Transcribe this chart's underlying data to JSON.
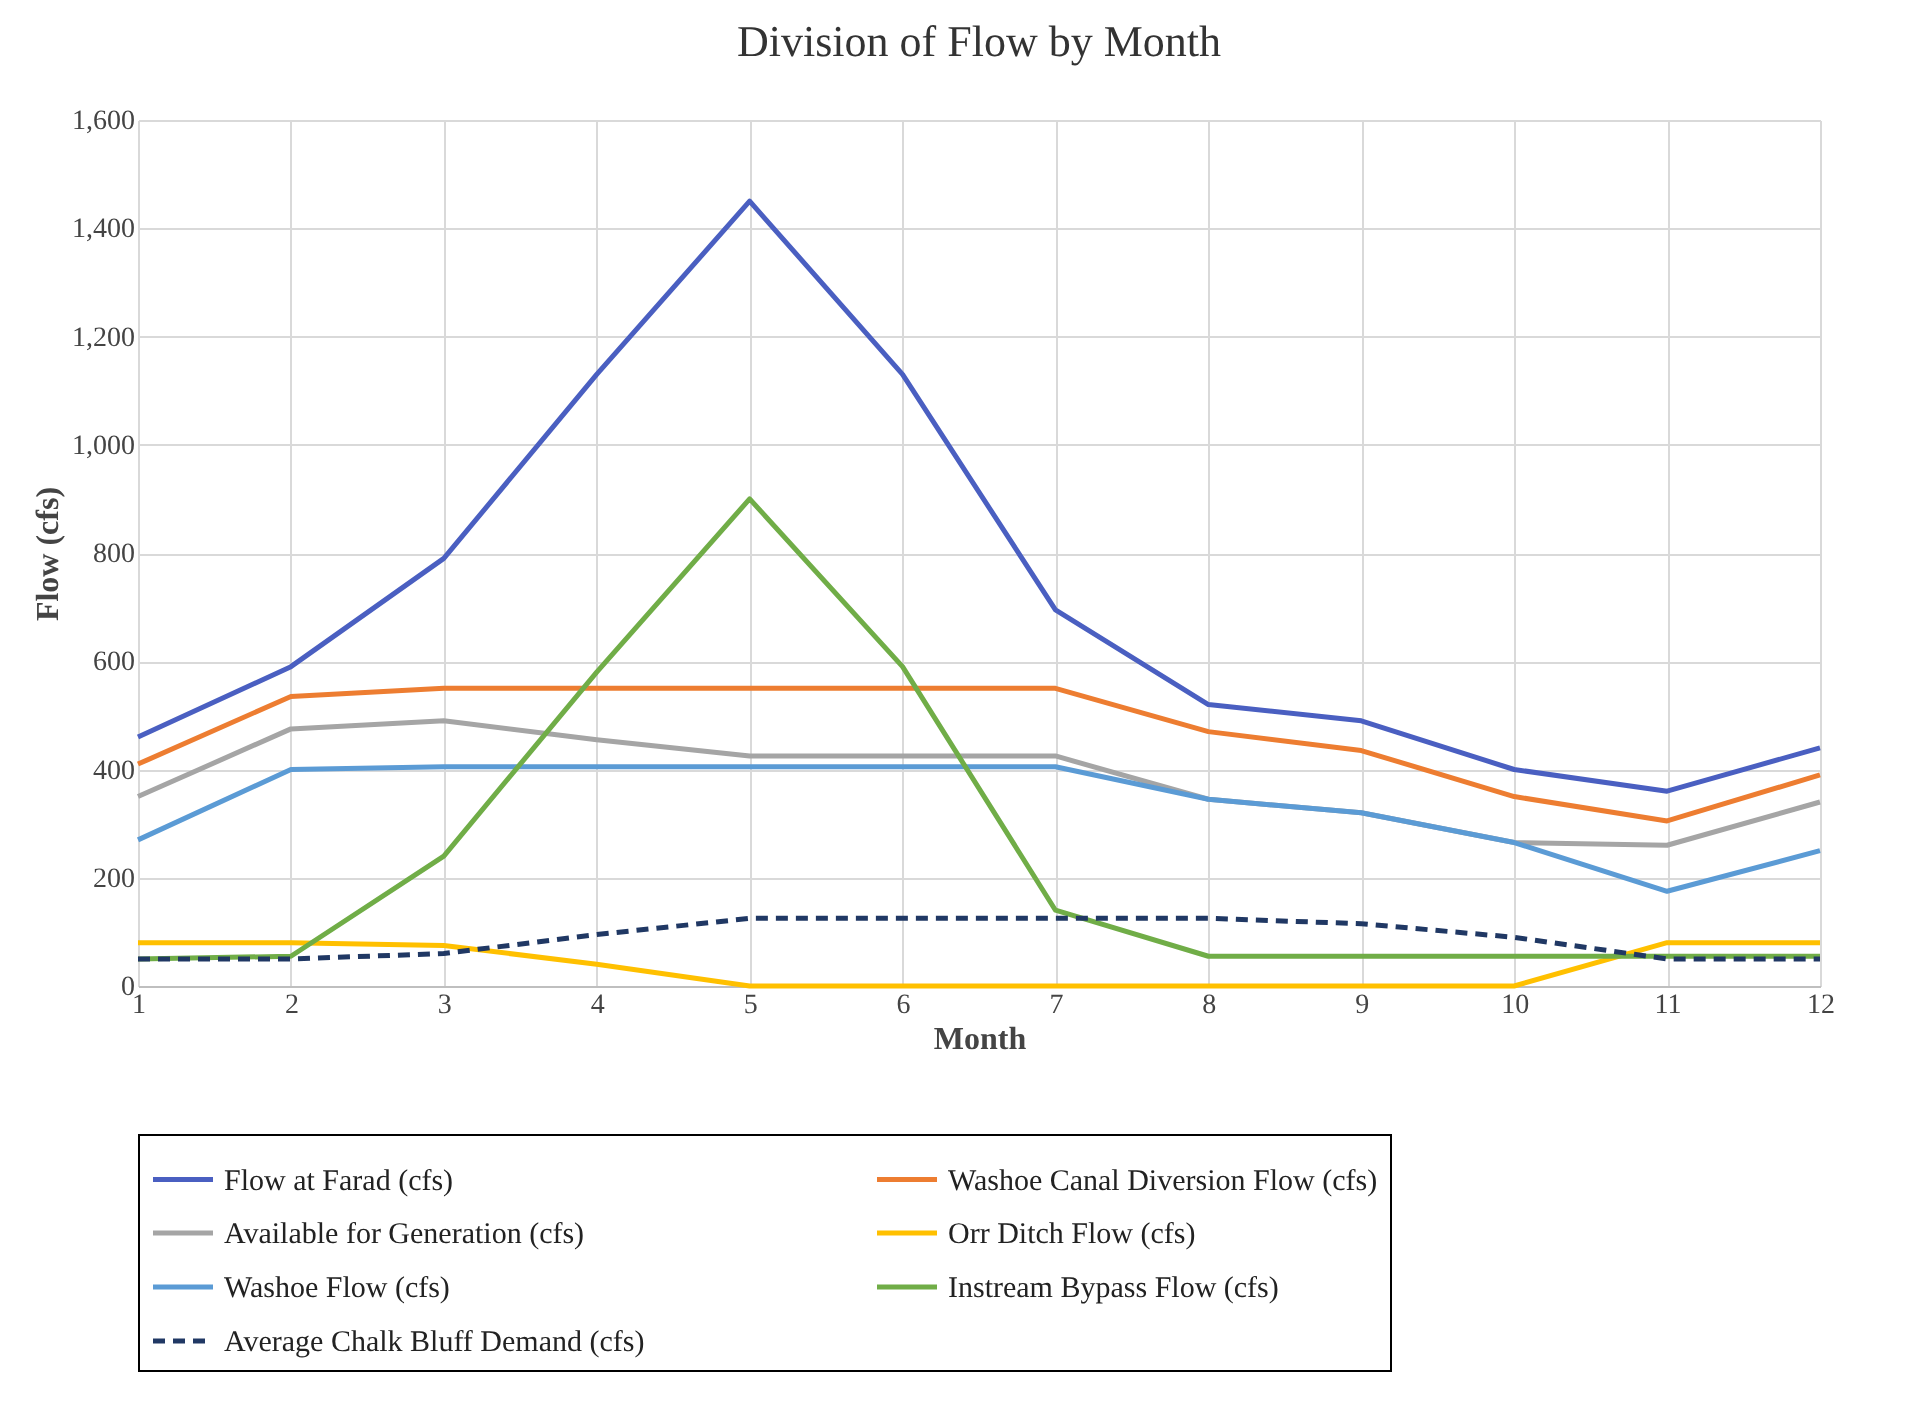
{
  "chart_data": {
    "type": "line",
    "title": "Division of Flow by Month",
    "xlabel": "Month",
    "ylabel": "Flow (cfs)",
    "x": [
      1,
      2,
      3,
      4,
      5,
      6,
      7,
      8,
      9,
      10,
      11,
      12
    ],
    "xlim": [
      1,
      12
    ],
    "xticks": [
      1,
      2,
      3,
      4,
      5,
      6,
      7,
      8,
      9,
      10,
      11,
      12
    ],
    "ylim": [
      0,
      1600
    ],
    "yticks": [
      0,
      {
        "value": 200,
        "label": "200"
      },
      {
        "value": 400,
        "label": "400"
      },
      {
        "value": 600,
        "label": "600"
      },
      {
        "value": 800,
        "label": "800"
      },
      {
        "value": 1000,
        "label": "1,000"
      },
      {
        "value": 1200,
        "label": "1,200"
      },
      {
        "value": 1400,
        "label": "1,400"
      },
      {
        "value": 1600,
        "label": "1,600"
      }
    ],
    "grid": true,
    "legend": "bottom",
    "marker": "none",
    "series": [
      {
        "name": "Flow at Farad (cfs)",
        "color": "#4a5fc1",
        "values": [
          460,
          590,
          790,
          1130,
          1450,
          1130,
          695,
          520,
          490,
          400,
          360,
          440
        ]
      },
      {
        "name": "Washoe Canal Diversion Flow (cfs)",
        "color": "#ed7d31",
        "values": [
          410,
          535,
          550,
          550,
          550,
          550,
          550,
          470,
          435,
          350,
          305,
          390
        ]
      },
      {
        "name": "Available for Generation (cfs)",
        "color": "#a5a5a5",
        "values": [
          350,
          475,
          490,
          455,
          425,
          425,
          425,
          345,
          320,
          265,
          260,
          340
        ]
      },
      {
        "name": "Orr Ditch Flow (cfs)",
        "color": "#ffc000",
        "values": [
          80,
          80,
          75,
          40,
          0,
          0,
          0,
          0,
          0,
          0,
          80,
          80
        ]
      },
      {
        "name": "Washoe Flow (cfs)",
        "color": "#5b9bd5",
        "values": [
          270,
          400,
          405,
          405,
          405,
          405,
          405,
          345,
          320,
          265,
          175,
          250
        ]
      },
      {
        "name": "Instream Bypass Flow (cfs)",
        "color": "#70ad47",
        "values": [
          50,
          55,
          240,
          580,
          900,
          590,
          140,
          55,
          55,
          55,
          55,
          55
        ]
      },
      {
        "name": "Average Chalk Bluff Demand (cfs)",
        "color": "#203864",
        "line_style": "dashed",
        "values": [
          50,
          50,
          60,
          95,
          125,
          125,
          125,
          125,
          115,
          90,
          50,
          50
        ]
      }
    ]
  }
}
